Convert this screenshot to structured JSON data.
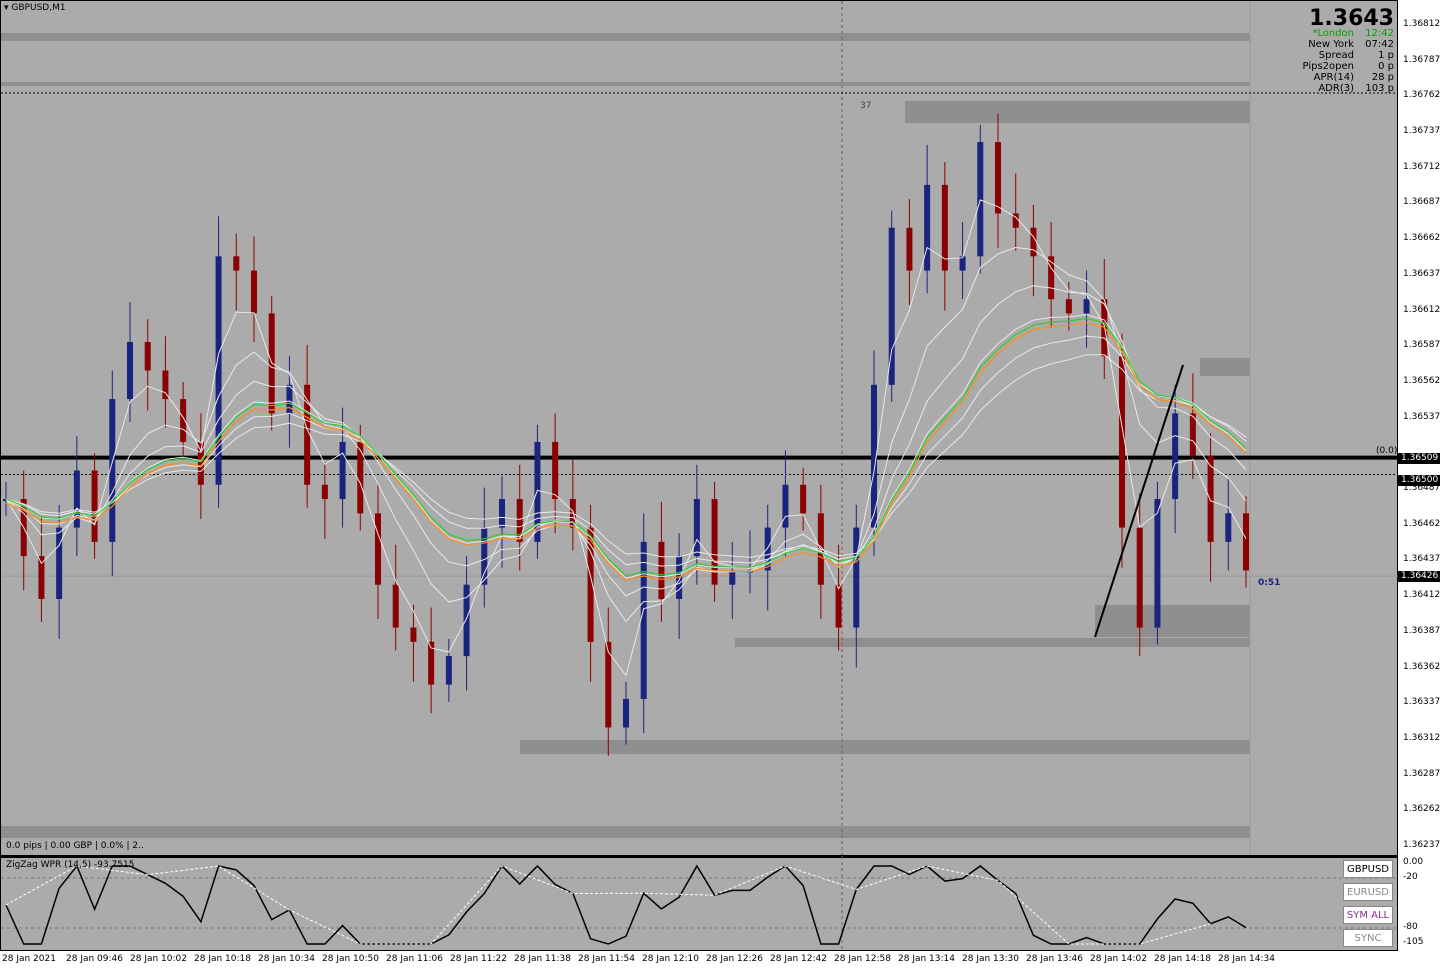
{
  "chart_title": "GBPUSD,M1",
  "big_price": "1.3643",
  "info_panel": [
    {
      "label": "*London",
      "value": "12:42",
      "color": "#00a000"
    },
    {
      "label": "New York",
      "value": "07:42",
      "color": "#000000"
    },
    {
      "label": "Spread",
      "value": "1 p",
      "color": "#000000"
    },
    {
      "label": "Pips2open",
      "value": "0 p",
      "color": "#000000"
    },
    {
      "label": "APR(14)",
      "value": "28 p",
      "color": "#000000"
    },
    {
      "label": "ADR(3)",
      "value": "103 p",
      "color": "#000000"
    }
  ],
  "zone_label": "37",
  "fib_label": "(0.0)",
  "countdown": "0:51",
  "status_line": "0.0 pips | 0.00 GBP | 0.0% | 2..",
  "indicator_title": "ZigZag WPR (14,5) -93.7515",
  "price_axis": [
    "1.36812",
    "1.36787",
    "1.36762",
    "1.36737",
    "1.36712",
    "1.36687",
    "1.36662",
    "1.36637",
    "1.36612",
    "1.36587",
    "1.36562",
    "1.36537",
    "1.36509",
    "1.36500",
    "1.36487",
    "1.36462",
    "1.36437",
    "1.36426",
    "1.36412",
    "1.36387",
    "1.36362",
    "1.36337",
    "1.36312",
    "1.36287",
    "1.36262",
    "1.36237"
  ],
  "indicator_axis": [
    "0.00",
    "-20",
    "-80",
    "-105"
  ],
  "time_axis": [
    "28 Jan 2021",
    "28 Jan 09:46",
    "28 Jan 10:02",
    "28 Jan 10:18",
    "28 Jan 10:34",
    "28 Jan 10:50",
    "28 Jan 11:06",
    "28 Jan 11:22",
    "28 Jan 11:38",
    "28 Jan 11:54",
    "28 Jan 12:10",
    "28 Jan 12:26",
    "28 Jan 12:42",
    "28 Jan 12:58",
    "28 Jan 13:14",
    "28 Jan 13:30",
    "28 Jan 13:46",
    "28 Jan 14:02",
    "28 Jan 14:18",
    "28 Jan 14:34"
  ],
  "buttons": [
    {
      "label": "GBPUSD",
      "color": "#000000"
    },
    {
      "label": "EURUSD",
      "color": "#888888"
    },
    {
      "label": "SYM ALL",
      "color": "#8a2a8a"
    },
    {
      "label": "SYNC",
      "color": "#888888"
    }
  ],
  "colors": {
    "bull": "#1a237e",
    "bear": "#8b0000",
    "chart_bg": "#ababab",
    "ema_green": "#33cc33",
    "ema_orange": "#ff8c1a"
  },
  "chart_data": {
    "type": "candlestick",
    "symbol": "GBPUSD",
    "timeframe": "M1",
    "ylim": [
      1.36237,
      1.36812
    ],
    "levels": {
      "horizontal_line": 1.36509,
      "bid": 1.36426,
      "ask_line": 1.365
    },
    "close_path": [
      1.3648,
      1.3644,
      1.3641,
      1.3646,
      1.365,
      1.3645,
      1.3655,
      1.3659,
      1.3657,
      1.3655,
      1.3652,
      1.3649,
      1.3665,
      1.3664,
      1.3661,
      1.3654,
      1.3656,
      1.3649,
      1.3648,
      1.3652,
      1.3647,
      1.3642,
      1.3639,
      1.3638,
      1.3635,
      1.3637,
      1.3642,
      1.3646,
      1.3648,
      1.3645,
      1.3652,
      1.3648,
      1.3646,
      1.3638,
      1.3632,
      1.3634,
      1.3645,
      1.3641,
      1.3644,
      1.3648,
      1.3642,
      1.3643,
      1.3643,
      1.3646,
      1.3649,
      1.3647,
      1.3642,
      1.3639,
      1.3646,
      1.3656,
      1.3667,
      1.3664,
      1.367,
      1.3664,
      1.3665,
      1.3673,
      1.3668,
      1.3667,
      1.3665,
      1.3662,
      1.3661,
      1.3662,
      1.3658,
      1.3646,
      1.3639,
      1.3648,
      1.3654,
      1.3651,
      1.3645,
      1.3647,
      1.3643
    ]
  }
}
